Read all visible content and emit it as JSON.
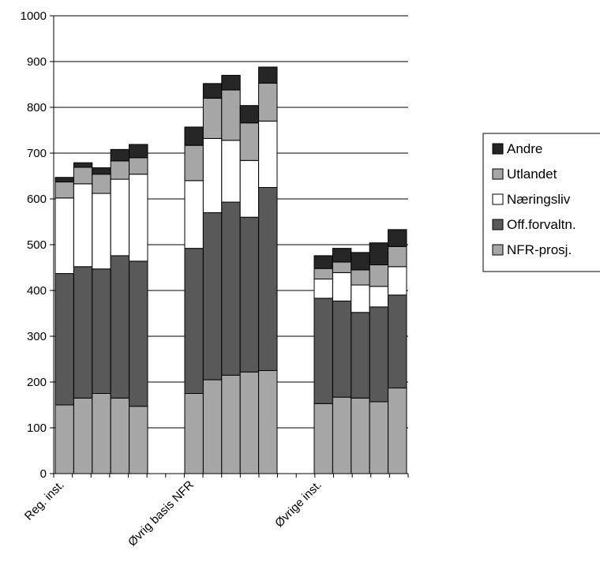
{
  "chart_data": {
    "type": "bar",
    "stacked": true,
    "groups": [
      "Reg. inst.",
      "Øvrig basis NFR",
      "Øvrige inst."
    ],
    "bars_per_group": 5,
    "ylim": [
      0,
      1000
    ],
    "yticks": [
      0,
      100,
      200,
      300,
      400,
      500,
      600,
      700,
      800,
      900,
      1000
    ],
    "grid": true,
    "legend_position": "right",
    "series": [
      {
        "name": "NFR-prosj.",
        "color": "#a6a6a6",
        "values": [
          150,
          165,
          175,
          165,
          147,
          175,
          205,
          215,
          222,
          225,
          153,
          167,
          165,
          157,
          187
        ]
      },
      {
        "name": "Off.forvaltn.",
        "color": "#595959",
        "values": [
          287,
          287,
          272,
          311,
          317,
          317,
          365,
          378,
          338,
          400,
          230,
          210,
          187,
          207,
          203
        ]
      },
      {
        "name": "Næringsliv",
        "color": "#ffffff",
        "values": [
          165,
          181,
          165,
          167,
          190,
          148,
          162,
          135,
          124,
          145,
          42,
          62,
          60,
          45,
          62
        ]
      },
      {
        "name": "Utlandet",
        "color": "#a6a6a6",
        "values": [
          35,
          36,
          42,
          40,
          36,
          77,
          88,
          110,
          82,
          83,
          23,
          23,
          33,
          47,
          44
        ]
      },
      {
        "name": "Andre",
        "color": "#262626",
        "values": [
          10,
          10,
          14,
          25,
          29,
          40,
          32,
          32,
          38,
          35,
          28,
          30,
          38,
          48,
          37
        ]
      }
    ]
  }
}
